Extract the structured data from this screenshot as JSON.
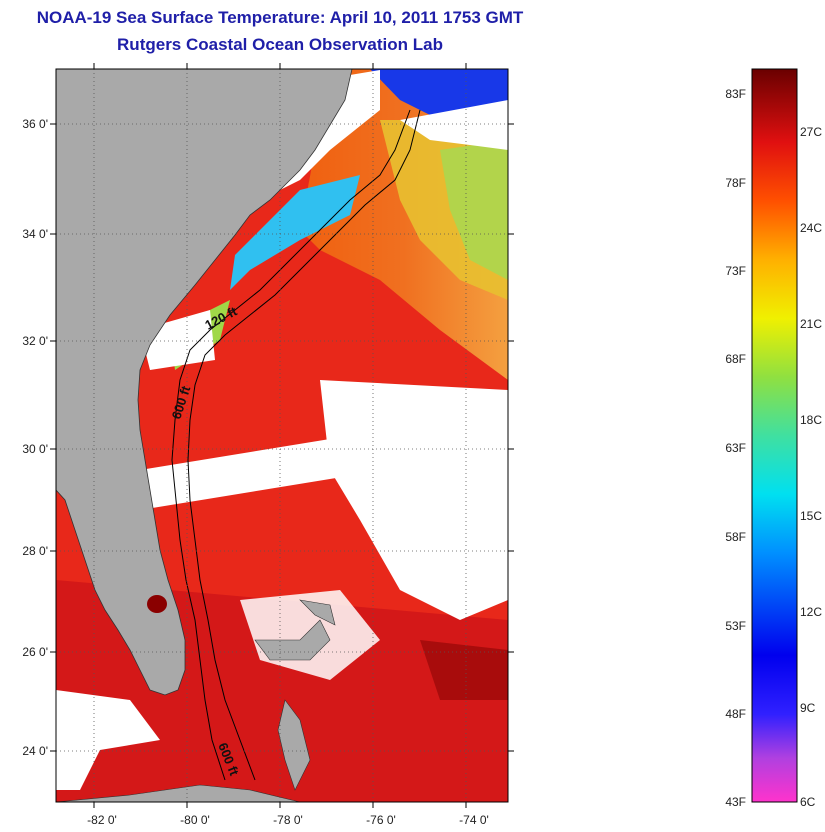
{
  "title": "NOAA-19 Sea Surface Temperature:  April 10, 2011 1753 GMT",
  "subtitle": "Rutgers Coastal Ocean Observation Lab",
  "map": {
    "lat_ticks": [
      "36 0'",
      "34 0'",
      "32 0'",
      "30 0'",
      "28 0'",
      "26 0'",
      "24 0'"
    ],
    "lon_ticks": [
      "-82 0'",
      "-80 0'",
      "-78 0'",
      "-76 0'",
      "-74 0'"
    ],
    "contour_labels": [
      "120 ft",
      "600 ft",
      "600 ft"
    ],
    "colors": {
      "land": "#a9a9a9",
      "cloud": "#ffffff",
      "warm_sea": "#e8281a",
      "contour": "#000000"
    }
  },
  "colorbar": {
    "fahrenheit": [
      "83F",
      "78F",
      "73F",
      "68F",
      "63F",
      "58F",
      "53F",
      "48F",
      "43F"
    ],
    "celsius": [
      "27C",
      "24C",
      "21C",
      "18C",
      "15C",
      "12C",
      "9C",
      "6C"
    ]
  }
}
